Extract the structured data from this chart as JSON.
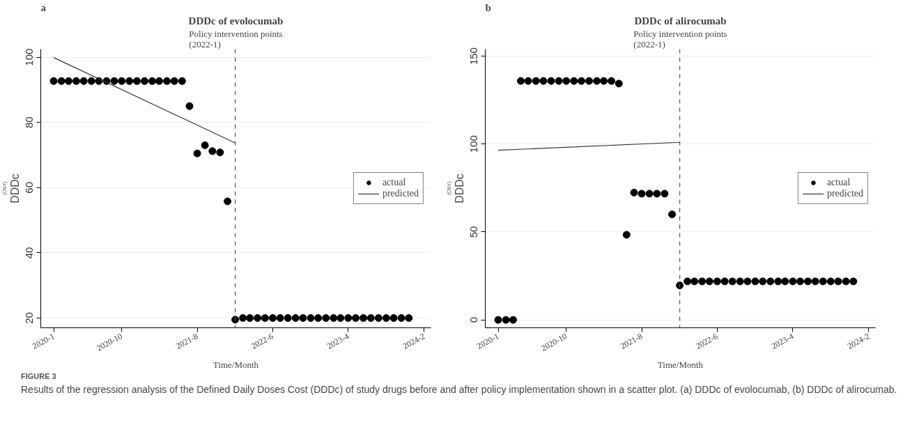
{
  "chart_data": [
    {
      "type": "scatter",
      "title": "DDDc of evolocumab",
      "xlabel": "Time/Month",
      "ylabel": "DDDc",
      "annotations": [
        "a",
        "(CNY)"
      ],
      "xlim": [
        "2019-11-10",
        "2024-02-28"
      ],
      "xticks": [
        {
          "value": "2020-01",
          "label": "2020-1"
        },
        {
          "value": "2020-10",
          "label": "2020-10"
        },
        {
          "value": "2021-08",
          "label": "2021-8"
        },
        {
          "value": "2022-06",
          "label": "2022-6"
        },
        {
          "value": "2023-04",
          "label": "2023-4"
        },
        {
          "value": "2024-02",
          "label": "2024-2"
        }
      ],
      "ylim": [
        17,
        102.5
      ],
      "yticks": [
        20,
        40,
        60,
        80,
        100
      ],
      "grid": "y",
      "legend": "right",
      "x": [
        "2020-01",
        "2020-02",
        "2020-03",
        "2020-04",
        "2020-05",
        "2020-06",
        "2020-07",
        "2020-08",
        "2020-09",
        "2020-10",
        "2020-11",
        "2020-12",
        "2021-01",
        "2021-02",
        "2021-03",
        "2021-04",
        "2021-05",
        "2021-06",
        "2021-07",
        "2021-08",
        "2021-09",
        "2021-10",
        "2021-11",
        "2021-12",
        "2022-01",
        "2022-02",
        "2022-03",
        "2022-04",
        "2022-05",
        "2022-06",
        "2022-07",
        "2022-08",
        "2022-09",
        "2022-10",
        "2022-11",
        "2022-12",
        "2023-01",
        "2023-02",
        "2023-03",
        "2023-04",
        "2023-05",
        "2023-06",
        "2023-07",
        "2023-08",
        "2023-09",
        "2023-10",
        "2023-11",
        "2023-12"
      ],
      "series": [
        {
          "name": "actual",
          "marker": "circle",
          "color": "#000000",
          "values": [
            92.7,
            92.7,
            92.7,
            92.7,
            92.7,
            92.7,
            92.7,
            92.7,
            92.7,
            92.7,
            92.7,
            92.7,
            92.7,
            92.7,
            92.7,
            92.7,
            92.7,
            92.7,
            85,
            70.5,
            73,
            71.2,
            70.8,
            55.8,
            19.5,
            20,
            20,
            20,
            20,
            20,
            20,
            20,
            20,
            20,
            20,
            20,
            20,
            20,
            20,
            20,
            20,
            20,
            20,
            20,
            20,
            20,
            20,
            20
          ]
        },
        {
          "name": "predicted",
          "type": "line",
          "marker": "none",
          "color": "#333333",
          "line_style": "solid",
          "x": [
            "2020-01",
            "2022-01"
          ],
          "values": [
            99.9,
            73.7
          ]
        }
      ],
      "ref_lines": [
        {
          "axis": "x",
          "value": "2022-01",
          "label": "Policy intervention points\n(2022-1)",
          "color": "#555555",
          "line_style": "dashed"
        }
      ]
    },
    {
      "type": "scatter",
      "title": "DDDc of alirocumab",
      "xlabel": "Time/Month",
      "ylabel": "DDDc",
      "annotations": [
        "b",
        "(CNY)",
        "FIGURE 3",
        "Results of the regression analysis of the Defined Daily Doses Cost (DDDc) of study drugs before and after policy implementation shown in a scatter plot. (a) DDDc of evolocumab, (b) DDDc of alirocumab."
      ],
      "xlim": [
        "2019-11-10",
        "2024-02-28"
      ],
      "xticks": [
        {
          "value": "2020-01",
          "label": "2020-1"
        },
        {
          "value": "2020-10",
          "label": "2020-10"
        },
        {
          "value": "2021-08",
          "label": "2021-8"
        },
        {
          "value": "2022-06",
          "label": "2022-6"
        },
        {
          "value": "2023-04",
          "label": "2023-4"
        },
        {
          "value": "2024-02",
          "label": "2024-2"
        }
      ],
      "ylim": [
        -4.5,
        154
      ],
      "yticks": [
        0,
        50,
        100,
        150
      ],
      "grid": "y",
      "legend": "right",
      "x": [
        "2020-01",
        "2020-02",
        "2020-03",
        "2020-04",
        "2020-05",
        "2020-06",
        "2020-07",
        "2020-08",
        "2020-09",
        "2020-10",
        "2020-11",
        "2020-12",
        "2021-01",
        "2021-02",
        "2021-03",
        "2021-04",
        "2021-05",
        "2021-06",
        "2021-07",
        "2021-08",
        "2021-09",
        "2021-10",
        "2021-11",
        "2021-12",
        "2022-01",
        "2022-02",
        "2022-03",
        "2022-04",
        "2022-05",
        "2022-06",
        "2022-07",
        "2022-08",
        "2022-09",
        "2022-10",
        "2022-11",
        "2022-12",
        "2023-01",
        "2023-02",
        "2023-03",
        "2023-04",
        "2023-05",
        "2023-06",
        "2023-07",
        "2023-08",
        "2023-09",
        "2023-10",
        "2023-11",
        "2023-12"
      ],
      "series": [
        {
          "name": "actual",
          "marker": "circle",
          "color": "#000000",
          "values": [
            0,
            0,
            0,
            135.9,
            135.9,
            135.9,
            135.9,
            135.9,
            135.9,
            135.9,
            135.9,
            135.9,
            135.9,
            135.9,
            135.9,
            135.9,
            134.4,
            48.4,
            72.4,
            71.8,
            71.8,
            71.8,
            71.8,
            60,
            19.6,
            21.9,
            21.9,
            21.9,
            21.9,
            21.9,
            21.9,
            21.9,
            21.9,
            21.9,
            21.9,
            21.9,
            21.9,
            21.9,
            21.9,
            21.9,
            21.9,
            21.9,
            21.9,
            21.9,
            21.9,
            21.9,
            21.9,
            21.9
          ]
        },
        {
          "name": "predicted",
          "type": "line",
          "marker": "none",
          "color": "#333333",
          "line_style": "solid",
          "x": [
            "2020-01",
            "2022-01"
          ],
          "values": [
            96.5,
            101.0
          ]
        }
      ],
      "ref_lines": [
        {
          "axis": "x",
          "value": "2022-01",
          "label": "Policy intervention points\n(2022-1)",
          "color": "#555555",
          "line_style": "dashed"
        }
      ]
    }
  ]
}
